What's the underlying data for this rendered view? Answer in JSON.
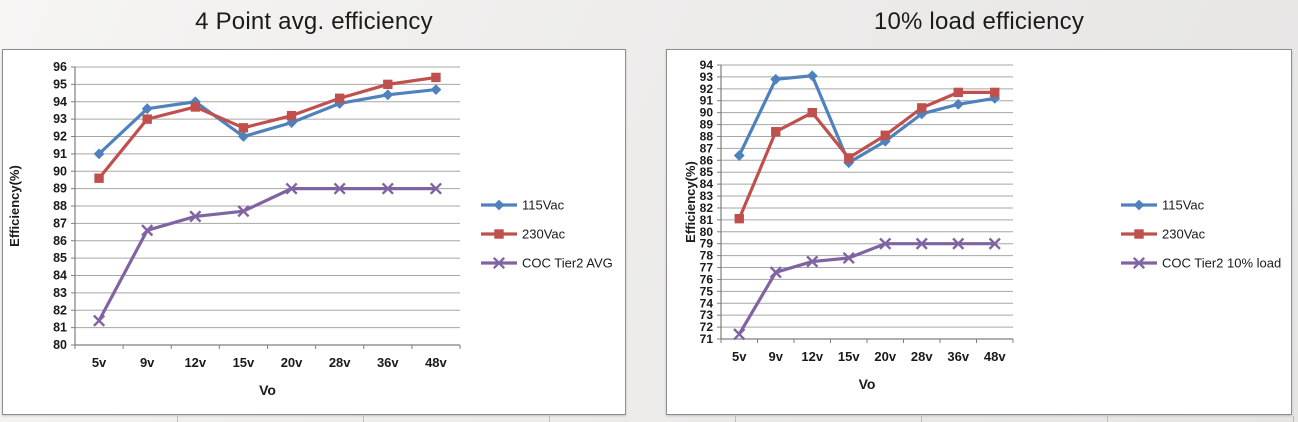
{
  "charts_section": {
    "left_title": "4 Point avg. efficiency",
    "right_title": "10% load efficiency"
  },
  "colors": {
    "series_blue": "#4F81BD",
    "series_red": "#C0504D",
    "series_purple": "#8064A2",
    "gridline": "#A6A6A6",
    "axis": "#7F7F7F"
  },
  "chart_data": [
    {
      "type": "line",
      "title": "4 Point avg. efficiency",
      "xlabel": "Vo",
      "ylabel": "Efficiency(%)",
      "categories": [
        "5v",
        "9v",
        "12v",
        "15v",
        "20v",
        "28v",
        "36v",
        "48v"
      ],
      "ylim": [
        80,
        96
      ],
      "ytick_step": 1,
      "grid": true,
      "legend_position": "right",
      "series": [
        {
          "name": "115Vac",
          "color": "#4F81BD",
          "marker": "diamond",
          "values": [
            91.0,
            93.6,
            94.0,
            92.0,
            92.8,
            93.9,
            94.4,
            94.7
          ]
        },
        {
          "name": "230Vac",
          "color": "#C0504D",
          "marker": "square",
          "values": [
            89.6,
            93.0,
            93.7,
            92.5,
            93.2,
            94.2,
            95.0,
            95.4
          ]
        },
        {
          "name": "COC Tier2 AVG",
          "color": "#8064A2",
          "marker": "x",
          "values": [
            81.4,
            86.6,
            87.4,
            87.7,
            89.0,
            89.0,
            89.0,
            89.0
          ]
        }
      ]
    },
    {
      "type": "line",
      "title": "10% load efficiency",
      "xlabel": "Vo",
      "ylabel": "Efficiency(%)",
      "categories": [
        "5v",
        "9v",
        "12v",
        "15v",
        "20v",
        "28v",
        "36v",
        "48v"
      ],
      "ylim": [
        71,
        94
      ],
      "ytick_step": 1,
      "grid": true,
      "legend_position": "right",
      "series": [
        {
          "name": "115Vac",
          "color": "#4F81BD",
          "marker": "diamond",
          "values": [
            86.4,
            92.8,
            93.1,
            85.8,
            87.6,
            89.9,
            90.7,
            91.2
          ]
        },
        {
          "name": "230Vac",
          "color": "#C0504D",
          "marker": "square",
          "values": [
            81.1,
            88.4,
            90.0,
            86.2,
            88.1,
            90.4,
            91.7,
            91.7
          ]
        },
        {
          "name": "COC Tier2 10% load",
          "color": "#8064A2",
          "marker": "x",
          "values": [
            71.4,
            76.6,
            77.5,
            77.8,
            79.0,
            79.0,
            79.0,
            79.0
          ]
        }
      ]
    }
  ]
}
